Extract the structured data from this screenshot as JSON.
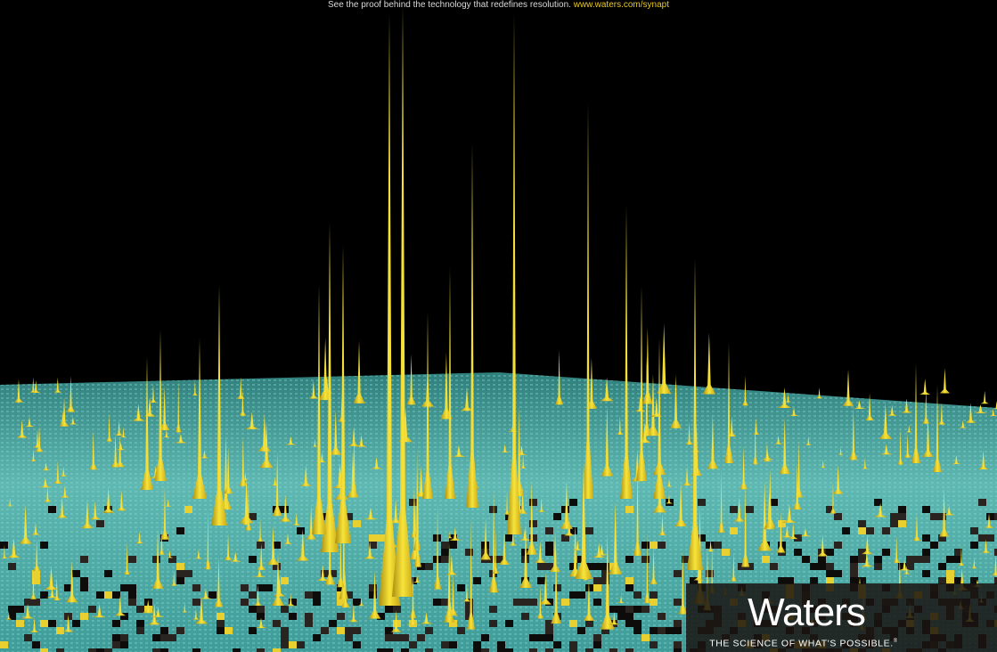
{
  "header": {
    "text": "See the proof behind the technology that redefines resolution.",
    "link": "www.waters.com/synapt"
  },
  "brand": {
    "name": "Waters",
    "slogan": "THE SCIENCE OF WHAT'S POSSIBLE.",
    "mark": "®"
  }
}
